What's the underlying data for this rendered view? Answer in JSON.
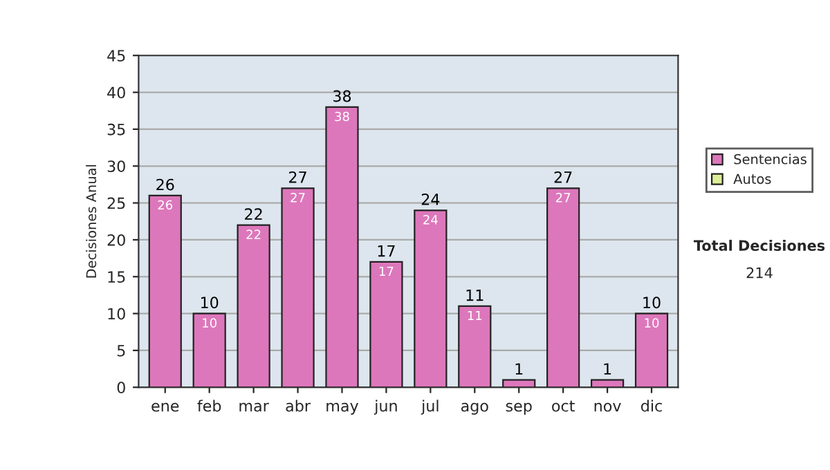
{
  "chart_data": {
    "type": "bar",
    "stacked": true,
    "ylabel": "Decisiones Anual",
    "categories": [
      "ene",
      "feb",
      "mar",
      "abr",
      "may",
      "jun",
      "jul",
      "ago",
      "sep",
      "oct",
      "nov",
      "dic"
    ],
    "series": [
      {
        "name": "Sentencias",
        "color": "#dd77bb",
        "values": [
          26,
          10,
          22,
          27,
          38,
          17,
          24,
          11,
          1,
          27,
          1,
          10
        ],
        "value_labels": [
          "26",
          "10",
          "22",
          "27",
          "38",
          "17",
          "24",
          "11",
          null,
          "27",
          null,
          "10"
        ]
      },
      {
        "name": "Autos",
        "color": "#ddee99",
        "values": [
          0,
          0,
          0,
          0,
          0,
          0,
          0,
          0,
          0,
          0,
          0,
          0
        ]
      }
    ],
    "totals": [
      "26",
      "10",
      "22",
      "27",
      "38",
      "17",
      "24",
      "11",
      "1",
      "27",
      "1",
      "10"
    ],
    "ylim": [
      0,
      45
    ],
    "yticks": [
      0,
      5,
      10,
      15,
      20,
      25,
      30,
      35,
      40,
      45
    ],
    "grid": "y",
    "legend": "right",
    "annotations": [
      "Total Decisiones",
      "214"
    ]
  }
}
